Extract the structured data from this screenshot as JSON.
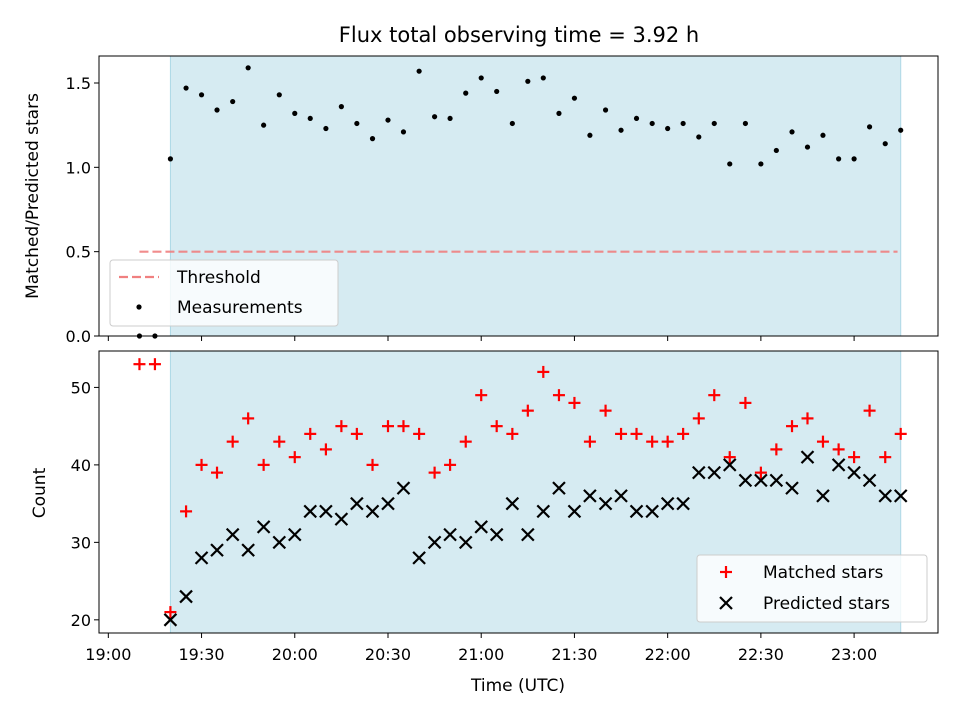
{
  "chart_data": [
    {
      "type": "scatter",
      "title": "Flux total observing time = 3.92 h",
      "xlabel": "",
      "ylabel": "Matched/Predicted stars",
      "ylim": [
        0,
        1.66
      ],
      "yticks": [
        "0.0",
        "0.5",
        "1.0",
        "1.5"
      ],
      "ytick_values": [
        0,
        0.5,
        1.0,
        1.5
      ],
      "shaded_region_x": [
        19.333,
        23.25
      ],
      "legend_position": "lower-left",
      "series": [
        {
          "name": "Threshold",
          "style": "dashed-line",
          "color": "#f08080",
          "x": [
            19.167,
            23.233
          ],
          "y": [
            0.5,
            0.5
          ]
        },
        {
          "name": "Measurements",
          "style": "dot",
          "color": "#000000",
          "x": [
            19.167,
            19.25,
            19.333,
            19.417,
            19.5,
            19.583,
            19.667,
            19.75,
            19.833,
            19.917,
            20.0,
            20.083,
            20.167,
            20.25,
            20.333,
            20.417,
            20.5,
            20.583,
            20.667,
            20.75,
            20.833,
            20.917,
            21.0,
            21.083,
            21.167,
            21.25,
            21.333,
            21.417,
            21.5,
            21.583,
            21.667,
            21.75,
            21.833,
            21.917,
            22.0,
            22.083,
            22.167,
            22.25,
            22.333,
            22.417,
            22.5,
            22.583,
            22.667,
            22.75,
            22.833,
            22.917,
            23.0,
            23.083,
            23.167,
            23.25
          ],
          "y": [
            0.0,
            0.0,
            1.05,
            1.47,
            1.43,
            1.34,
            1.39,
            1.59,
            1.25,
            1.43,
            1.32,
            1.29,
            1.23,
            1.36,
            1.26,
            1.17,
            1.28,
            1.21,
            1.57,
            1.3,
            1.29,
            1.44,
            1.53,
            1.45,
            1.26,
            1.51,
            1.53,
            1.32,
            1.41,
            1.19,
            1.34,
            1.22,
            1.29,
            1.26,
            1.23,
            1.26,
            1.18,
            1.26,
            1.02,
            1.26,
            1.02,
            1.1,
            1.21,
            1.12,
            1.19,
            1.05,
            1.05,
            1.24,
            1.14,
            1.22
          ]
        }
      ]
    },
    {
      "type": "scatter",
      "title": "",
      "xlabel": "Time (UTC)",
      "ylabel": "Count",
      "ylim": [
        18.3,
        54.7
      ],
      "yticks": [
        "20",
        "30",
        "40",
        "50"
      ],
      "ytick_values": [
        20,
        30,
        40,
        50
      ],
      "xlim": [
        18.95,
        23.45
      ],
      "xticks": [
        "19:00",
        "19:30",
        "20:00",
        "20:30",
        "21:00",
        "21:30",
        "22:00",
        "22:30",
        "23:00"
      ],
      "xtick_values": [
        19.0,
        19.5,
        20.0,
        20.5,
        21.0,
        21.5,
        22.0,
        22.5,
        23.0
      ],
      "shaded_region_x": [
        19.333,
        23.25
      ],
      "legend_position": "lower-right",
      "series": [
        {
          "name": "Matched stars",
          "style": "plus",
          "color": "#ff0000",
          "x": [
            19.167,
            19.25,
            19.333,
            19.417,
            19.5,
            19.583,
            19.667,
            19.75,
            19.833,
            19.917,
            20.0,
            20.083,
            20.167,
            20.25,
            20.333,
            20.417,
            20.5,
            20.583,
            20.667,
            20.75,
            20.833,
            20.917,
            21.0,
            21.083,
            21.167,
            21.25,
            21.333,
            21.417,
            21.5,
            21.583,
            21.667,
            21.75,
            21.833,
            21.917,
            22.0,
            22.083,
            22.167,
            22.25,
            22.333,
            22.417,
            22.5,
            22.583,
            22.667,
            22.75,
            22.833,
            22.917,
            23.0,
            23.083,
            23.167,
            23.25
          ],
          "y": [
            53,
            53,
            21,
            34,
            40,
            39,
            43,
            46,
            40,
            43,
            41,
            44,
            42,
            45,
            44,
            40,
            45,
            45,
            44,
            39,
            40,
            43,
            49,
            45,
            44,
            47,
            52,
            49,
            48,
            43,
            47,
            44,
            44,
            43,
            43,
            44,
            46,
            49,
            41,
            48,
            39,
            42,
            45,
            46,
            43,
            42,
            41,
            47,
            41,
            44
          ]
        },
        {
          "name": "Predicted stars",
          "style": "x",
          "color": "#000000",
          "x": [
            19.333,
            19.417,
            19.5,
            19.583,
            19.667,
            19.75,
            19.833,
            19.917,
            20.0,
            20.083,
            20.167,
            20.25,
            20.333,
            20.417,
            20.5,
            20.583,
            20.667,
            20.75,
            20.833,
            20.917,
            21.0,
            21.083,
            21.167,
            21.25,
            21.333,
            21.417,
            21.5,
            21.583,
            21.667,
            21.75,
            21.833,
            21.917,
            22.0,
            22.083,
            22.167,
            22.25,
            22.333,
            22.417,
            22.5,
            22.583,
            22.667,
            22.75,
            22.833,
            22.917,
            23.0,
            23.083,
            23.167,
            23.25
          ],
          "y": [
            20,
            23,
            28,
            29,
            31,
            29,
            32,
            30,
            31,
            34,
            34,
            33,
            35,
            34,
            35,
            37,
            28,
            30,
            31,
            30,
            32,
            31,
            35,
            31,
            34,
            37,
            34,
            36,
            35,
            36,
            34,
            34,
            35,
            35,
            39,
            39,
            40,
            38,
            38,
            38,
            37,
            41,
            36,
            40,
            39,
            38,
            36,
            36
          ]
        }
      ]
    }
  ]
}
